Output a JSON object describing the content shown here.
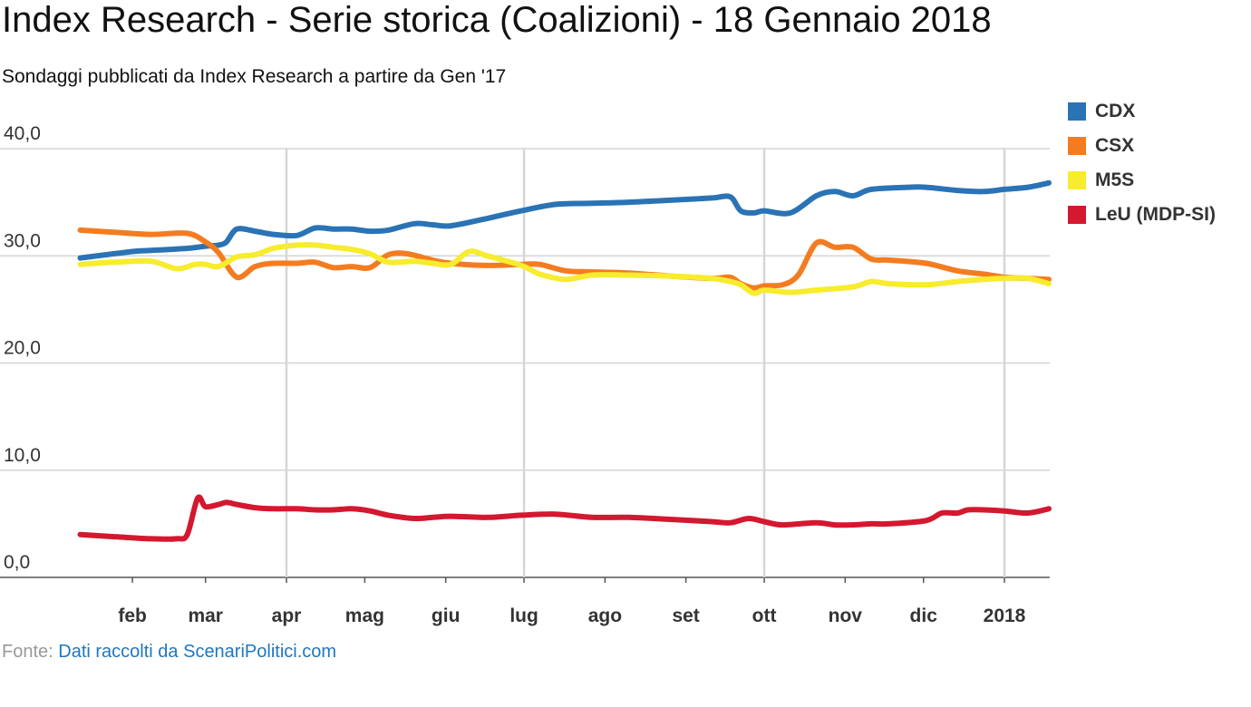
{
  "title": "Index Research - Serie storica (Coalizioni) - 18 Gennaio 2018",
  "subtitle": "Sondaggi pubblicati da Index Research a partire da Gen '17",
  "source": {
    "prefix": "Fonte: ",
    "link_text": "Dati raccolti da ScenariPolitici.com"
  },
  "chart_data": {
    "type": "line",
    "title": "Index Research - Serie storica (Coalizioni) - 18 Gennaio 2018",
    "subtitle": "Sondaggi pubblicati da Index Research a partire da Gen '17",
    "xlabel": "",
    "ylabel": "",
    "x_range": [
      "2017-01-12",
      "2018-01-18"
    ],
    "ylim": [
      0,
      40
    ],
    "y_ticks": [
      "0,0",
      "10,0",
      "20,0",
      "30,0",
      "40,0"
    ],
    "x_ticks": [
      {
        "label": "feb",
        "date": "2017-02-01",
        "grid": false
      },
      {
        "label": "mar",
        "date": "2017-03-01",
        "grid": false
      },
      {
        "label": "apr",
        "date": "2017-04-01",
        "grid": true
      },
      {
        "label": "mag",
        "date": "2017-05-01",
        "grid": false
      },
      {
        "label": "giu",
        "date": "2017-06-01",
        "grid": false
      },
      {
        "label": "lug",
        "date": "2017-07-01",
        "grid": true
      },
      {
        "label": "ago",
        "date": "2017-08-01",
        "grid": false
      },
      {
        "label": "set",
        "date": "2017-09-01",
        "grid": false
      },
      {
        "label": "ott",
        "date": "2017-10-01",
        "grid": true
      },
      {
        "label": "nov",
        "date": "2017-11-01",
        "grid": false
      },
      {
        "label": "dic",
        "date": "2017-12-01",
        "grid": false
      },
      {
        "label": "2018",
        "date": "2018-01-01",
        "grid": true
      }
    ],
    "grid": true,
    "legend_position": "right",
    "series": [
      {
        "name": "CDX",
        "color": "#2a73b5",
        "points": [
          [
            "2017-01-12",
            29.8
          ],
          [
            "2017-02-01",
            30.4
          ],
          [
            "2017-02-08",
            30.5
          ],
          [
            "2017-02-22",
            30.7
          ],
          [
            "2017-03-01",
            30.9
          ],
          [
            "2017-03-06",
            31.0
          ],
          [
            "2017-03-09",
            31.3
          ],
          [
            "2017-03-13",
            32.5
          ],
          [
            "2017-03-20",
            32.3
          ],
          [
            "2017-03-27",
            32.0
          ],
          [
            "2017-04-05",
            31.9
          ],
          [
            "2017-04-12",
            32.6
          ],
          [
            "2017-04-19",
            32.5
          ],
          [
            "2017-04-26",
            32.5
          ],
          [
            "2017-05-03",
            32.3
          ],
          [
            "2017-05-10",
            32.4
          ],
          [
            "2017-05-20",
            33.0
          ],
          [
            "2017-05-27",
            32.9
          ],
          [
            "2017-06-03",
            32.8
          ],
          [
            "2017-06-17",
            33.5
          ],
          [
            "2017-06-30",
            34.2
          ],
          [
            "2017-07-13",
            34.8
          ],
          [
            "2017-07-27",
            34.9
          ],
          [
            "2017-08-10",
            35.0
          ],
          [
            "2017-08-27",
            35.2
          ],
          [
            "2017-09-11",
            35.4
          ],
          [
            "2017-09-18",
            35.5
          ],
          [
            "2017-09-22",
            34.2
          ],
          [
            "2017-09-27",
            34.0
          ],
          [
            "2017-10-01",
            34.2
          ],
          [
            "2017-10-11",
            34.0
          ],
          [
            "2017-10-21",
            35.6
          ],
          [
            "2017-10-28",
            36.0
          ],
          [
            "2017-11-04",
            35.6
          ],
          [
            "2017-11-11",
            36.2
          ],
          [
            "2017-11-25",
            36.4
          ],
          [
            "2017-12-02",
            36.4
          ],
          [
            "2017-12-14",
            36.1
          ],
          [
            "2017-12-24",
            36.0
          ],
          [
            "2018-01-01",
            36.2
          ],
          [
            "2018-01-10",
            36.4
          ],
          [
            "2018-01-18",
            36.8
          ]
        ]
      },
      {
        "name": "CSX",
        "color": "#f47c20",
        "points": [
          [
            "2017-01-12",
            32.4
          ],
          [
            "2017-01-25",
            32.2
          ],
          [
            "2017-02-08",
            32.0
          ],
          [
            "2017-02-22",
            32.1
          ],
          [
            "2017-03-01",
            31.3
          ],
          [
            "2017-03-06",
            30.3
          ],
          [
            "2017-03-13",
            28.0
          ],
          [
            "2017-03-20",
            29.0
          ],
          [
            "2017-03-27",
            29.3
          ],
          [
            "2017-04-05",
            29.3
          ],
          [
            "2017-04-12",
            29.4
          ],
          [
            "2017-04-19",
            28.9
          ],
          [
            "2017-04-26",
            29.0
          ],
          [
            "2017-05-03",
            28.9
          ],
          [
            "2017-05-10",
            30.1
          ],
          [
            "2017-05-17",
            30.2
          ],
          [
            "2017-05-27",
            29.6
          ],
          [
            "2017-06-03",
            29.3
          ],
          [
            "2017-06-17",
            29.1
          ],
          [
            "2017-06-30",
            29.2
          ],
          [
            "2017-07-07",
            29.2
          ],
          [
            "2017-07-17",
            28.6
          ],
          [
            "2017-07-27",
            28.5
          ],
          [
            "2017-08-10",
            28.4
          ],
          [
            "2017-08-27",
            28.1
          ],
          [
            "2017-09-11",
            27.9
          ],
          [
            "2017-09-18",
            28.0
          ],
          [
            "2017-09-22",
            27.4
          ],
          [
            "2017-09-27",
            27.0
          ],
          [
            "2017-10-01",
            27.2
          ],
          [
            "2017-10-08",
            27.3
          ],
          [
            "2017-10-14",
            28.2
          ],
          [
            "2017-10-21",
            31.2
          ],
          [
            "2017-10-28",
            30.8
          ],
          [
            "2017-11-04",
            30.8
          ],
          [
            "2017-11-11",
            29.7
          ],
          [
            "2017-11-18",
            29.6
          ],
          [
            "2017-12-02",
            29.3
          ],
          [
            "2017-12-14",
            28.6
          ],
          [
            "2017-12-24",
            28.3
          ],
          [
            "2018-01-01",
            28.0
          ],
          [
            "2018-01-10",
            27.9
          ],
          [
            "2018-01-18",
            27.8
          ]
        ]
      },
      {
        "name": "M5S",
        "color": "#f7ec2d",
        "points": [
          [
            "2017-01-12",
            29.2
          ],
          [
            "2017-01-25",
            29.4
          ],
          [
            "2017-02-08",
            29.5
          ],
          [
            "2017-02-18",
            28.8
          ],
          [
            "2017-02-25",
            29.2
          ],
          [
            "2017-03-01",
            29.2
          ],
          [
            "2017-03-06",
            29.0
          ],
          [
            "2017-03-13",
            29.9
          ],
          [
            "2017-03-20",
            30.1
          ],
          [
            "2017-03-27",
            30.7
          ],
          [
            "2017-04-05",
            31.0
          ],
          [
            "2017-04-12",
            31.0
          ],
          [
            "2017-04-19",
            30.8
          ],
          [
            "2017-04-26",
            30.6
          ],
          [
            "2017-05-03",
            30.2
          ],
          [
            "2017-05-10",
            29.4
          ],
          [
            "2017-05-20",
            29.5
          ],
          [
            "2017-05-27",
            29.3
          ],
          [
            "2017-06-03",
            29.2
          ],
          [
            "2017-06-10",
            30.4
          ],
          [
            "2017-06-17",
            30.0
          ],
          [
            "2017-06-30",
            29.1
          ],
          [
            "2017-07-07",
            28.3
          ],
          [
            "2017-07-17",
            27.8
          ],
          [
            "2017-07-27",
            28.2
          ],
          [
            "2017-08-10",
            28.2
          ],
          [
            "2017-08-27",
            28.1
          ],
          [
            "2017-09-11",
            27.9
          ],
          [
            "2017-09-18",
            27.6
          ],
          [
            "2017-09-22",
            27.3
          ],
          [
            "2017-09-27",
            26.5
          ],
          [
            "2017-10-01",
            26.8
          ],
          [
            "2017-10-11",
            26.6
          ],
          [
            "2017-10-21",
            26.8
          ],
          [
            "2017-11-04",
            27.1
          ],
          [
            "2017-11-11",
            27.6
          ],
          [
            "2017-11-18",
            27.4
          ],
          [
            "2017-12-02",
            27.3
          ],
          [
            "2017-12-14",
            27.6
          ],
          [
            "2017-12-24",
            27.8
          ],
          [
            "2018-01-01",
            27.9
          ],
          [
            "2018-01-10",
            27.9
          ],
          [
            "2018-01-18",
            27.4
          ]
        ]
      },
      {
        "name": "LeU (MDP-SI)",
        "color": "#d3182f",
        "points": [
          [
            "2017-01-12",
            4.0
          ],
          [
            "2017-01-25",
            3.8
          ],
          [
            "2017-02-08",
            3.6
          ],
          [
            "2017-02-18",
            3.6
          ],
          [
            "2017-02-22",
            4.0
          ],
          [
            "2017-02-26",
            7.4
          ],
          [
            "2017-03-01",
            6.6
          ],
          [
            "2017-03-06",
            6.8
          ],
          [
            "2017-03-09",
            7.0
          ],
          [
            "2017-03-13",
            6.8
          ],
          [
            "2017-03-20",
            6.5
          ],
          [
            "2017-03-27",
            6.4
          ],
          [
            "2017-04-05",
            6.4
          ],
          [
            "2017-04-12",
            6.3
          ],
          [
            "2017-04-19",
            6.3
          ],
          [
            "2017-04-26",
            6.4
          ],
          [
            "2017-05-03",
            6.2
          ],
          [
            "2017-05-10",
            5.8
          ],
          [
            "2017-05-20",
            5.5
          ],
          [
            "2017-05-27",
            5.6
          ],
          [
            "2017-06-03",
            5.7
          ],
          [
            "2017-06-17",
            5.6
          ],
          [
            "2017-06-30",
            5.8
          ],
          [
            "2017-07-13",
            5.9
          ],
          [
            "2017-07-27",
            5.6
          ],
          [
            "2017-08-10",
            5.6
          ],
          [
            "2017-08-27",
            5.4
          ],
          [
            "2017-09-11",
            5.2
          ],
          [
            "2017-09-18",
            5.1
          ],
          [
            "2017-09-25",
            5.5
          ],
          [
            "2017-10-01",
            5.2
          ],
          [
            "2017-10-08",
            4.9
          ],
          [
            "2017-10-21",
            5.1
          ],
          [
            "2017-10-28",
            4.9
          ],
          [
            "2017-11-04",
            4.9
          ],
          [
            "2017-11-11",
            5.0
          ],
          [
            "2017-11-18",
            5.0
          ],
          [
            "2017-12-02",
            5.3
          ],
          [
            "2017-12-08",
            6.0
          ],
          [
            "2017-12-14",
            6.0
          ],
          [
            "2017-12-18",
            6.3
          ],
          [
            "2017-12-24",
            6.3
          ],
          [
            "2018-01-01",
            6.2
          ],
          [
            "2018-01-10",
            6.0
          ],
          [
            "2018-01-18",
            6.4
          ]
        ]
      }
    ]
  }
}
